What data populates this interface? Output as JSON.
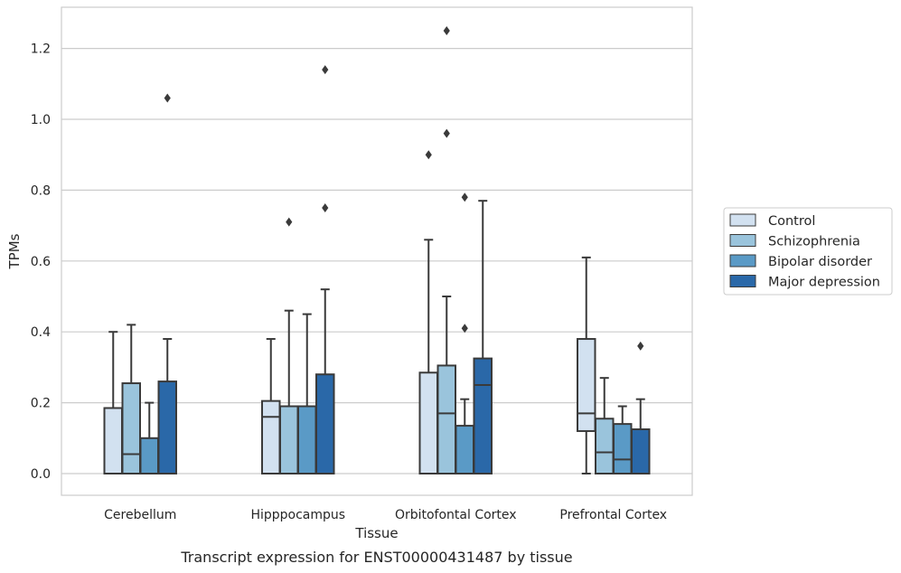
{
  "chart_data": {
    "type": "box",
    "xlabel": "Tissue",
    "ylabel": "TPMs",
    "caption": "Transcript expression for ENST00000431487 by tissue",
    "ylim": [
      -0.06,
      1.32
    ],
    "yticks": [
      "0.0",
      "0.2",
      "0.4",
      "0.6",
      "0.8",
      "1.0",
      "1.2"
    ],
    "grid": "horizontal",
    "legend_position": "right",
    "categories": [
      "Cerebellum",
      "Hipppocampus",
      "Orbitofontal Cortex",
      "Prefrontal Cortex"
    ],
    "series": [
      {
        "name": "Control",
        "color": "#d2e1f0",
        "boxes": [
          {
            "whisker_low": 0.0,
            "q1": 0.0,
            "median": 0.0,
            "q3": 0.185,
            "whisker_high": 0.4,
            "outliers": []
          },
          {
            "whisker_low": 0.0,
            "q1": 0.0,
            "median": 0.16,
            "q3": 0.205,
            "whisker_high": 0.38,
            "outliers": []
          },
          {
            "whisker_low": 0.0,
            "q1": 0.0,
            "median": 0.0,
            "q3": 0.285,
            "whisker_high": 0.66,
            "outliers": [
              0.9
            ]
          },
          {
            "whisker_low": 0.0,
            "q1": 0.12,
            "median": 0.17,
            "q3": 0.38,
            "whisker_high": 0.61,
            "outliers": []
          }
        ]
      },
      {
        "name": "Schizophrenia",
        "color": "#9ac4dc",
        "boxes": [
          {
            "whisker_low": 0.0,
            "q1": 0.0,
            "median": 0.055,
            "q3": 0.255,
            "whisker_high": 0.42,
            "outliers": []
          },
          {
            "whisker_low": 0.0,
            "q1": 0.0,
            "median": 0.0,
            "q3": 0.19,
            "whisker_high": 0.46,
            "outliers": [
              0.71
            ]
          },
          {
            "whisker_low": 0.0,
            "q1": 0.0,
            "median": 0.17,
            "q3": 0.305,
            "whisker_high": 0.5,
            "outliers": [
              1.25,
              0.96
            ]
          },
          {
            "whisker_low": 0.0,
            "q1": 0.0,
            "median": 0.06,
            "q3": 0.155,
            "whisker_high": 0.27,
            "outliers": []
          }
        ]
      },
      {
        "name": "Bipolar disorder",
        "color": "#5a9ac6",
        "boxes": [
          {
            "whisker_low": 0.0,
            "q1": 0.0,
            "median": 0.0,
            "q3": 0.1,
            "whisker_high": 0.2,
            "outliers": []
          },
          {
            "whisker_low": 0.0,
            "q1": 0.0,
            "median": 0.0,
            "q3": 0.19,
            "whisker_high": 0.45,
            "outliers": []
          },
          {
            "whisker_low": 0.0,
            "q1": 0.0,
            "median": 0.0,
            "q3": 0.135,
            "whisker_high": 0.21,
            "outliers": [
              0.78,
              0.41
            ]
          },
          {
            "whisker_low": 0.0,
            "q1": 0.0,
            "median": 0.04,
            "q3": 0.14,
            "whisker_high": 0.19,
            "outliers": []
          }
        ]
      },
      {
        "name": "Major depression",
        "color": "#2a68a8",
        "boxes": [
          {
            "whisker_low": 0.0,
            "q1": 0.0,
            "median": 0.0,
            "q3": 0.26,
            "whisker_high": 0.38,
            "outliers": [
              1.06
            ]
          },
          {
            "whisker_low": 0.0,
            "q1": 0.0,
            "median": 0.0,
            "q3": 0.28,
            "whisker_high": 0.52,
            "outliers": [
              1.14,
              0.75
            ]
          },
          {
            "whisker_low": 0.0,
            "q1": 0.0,
            "median": 0.25,
            "q3": 0.325,
            "whisker_high": 0.77,
            "outliers": []
          },
          {
            "whisker_low": 0.0,
            "q1": 0.0,
            "median": 0.0,
            "q3": 0.125,
            "whisker_high": 0.21,
            "outliers": [
              0.36
            ]
          }
        ]
      }
    ]
  }
}
